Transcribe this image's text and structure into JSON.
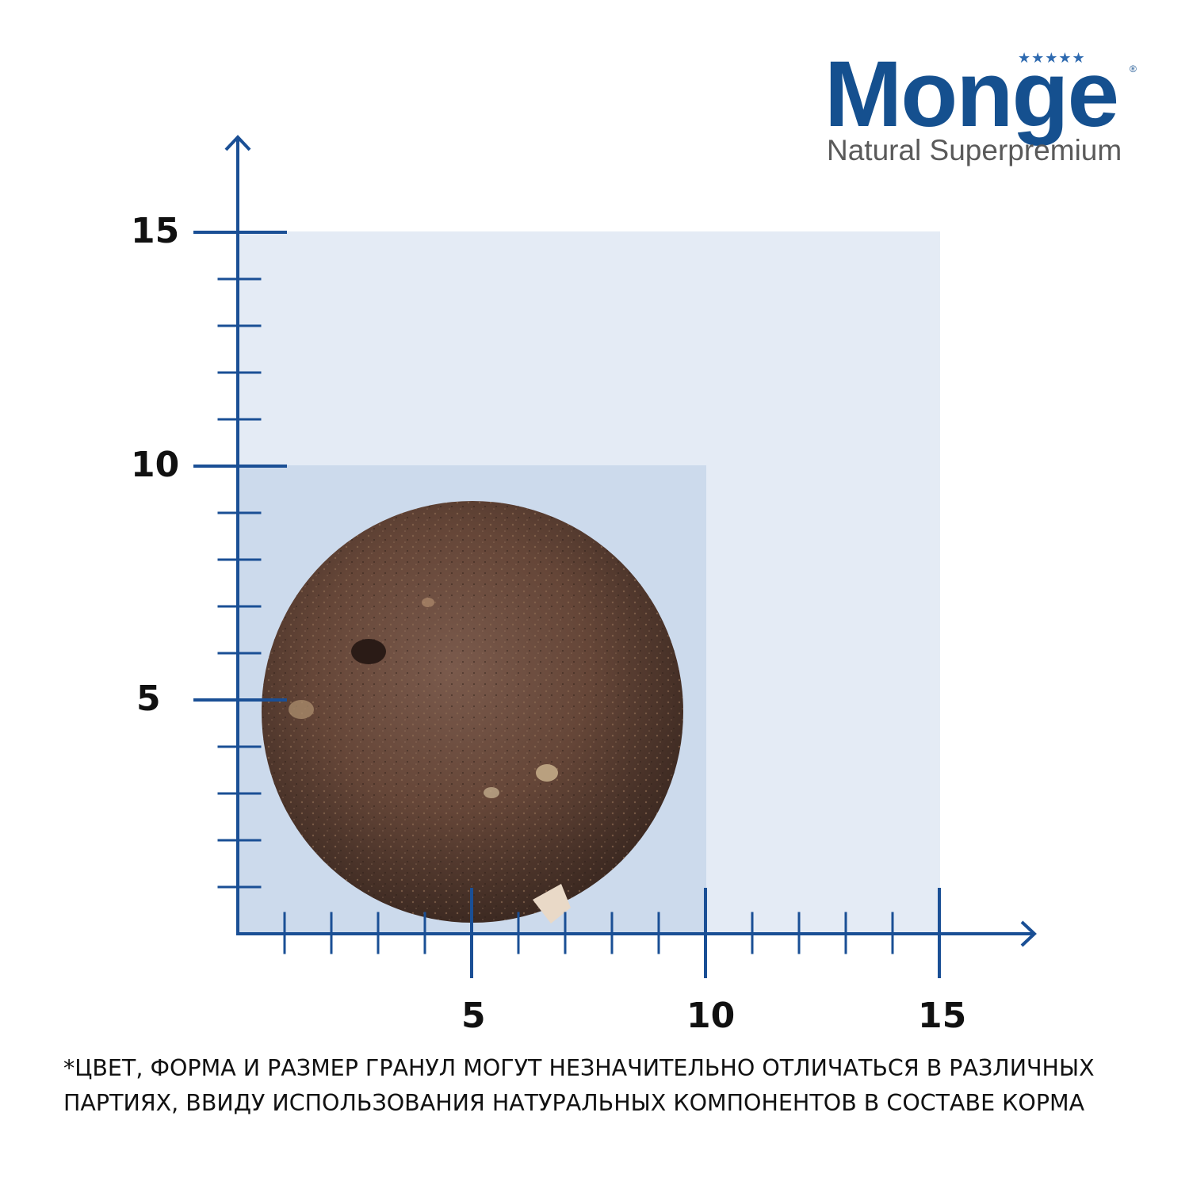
{
  "brand": {
    "name": "Monge",
    "stars": "★★★★★",
    "registered": "®",
    "tagline": "Natural Superpremium",
    "color": "#15508f"
  },
  "chart": {
    "y_ticks": [
      "15",
      "10",
      "5"
    ],
    "x_ticks": [
      "5",
      "10",
      "15"
    ],
    "axis_color": "#1a4f95",
    "outer_box_color": "#e4ebf5",
    "inner_box_color": "#ccdaec",
    "outer_box_size": 15,
    "inner_box_size": 10,
    "kibble_diameter": 9
  },
  "disclaimer": {
    "line1": "*ЦВЕТ, ФОРМА И РАЗМЕР ГРАНУЛ МОГУТ НЕЗНАЧИТЕЛЬНО ОТЛИЧАТЬСЯ  В РАЗЛИЧНЫХ",
    "line2": "ПАРТИЯХ, ВВИДУ ИСПОЛЬЗОВАНИЯ НАТУРАЛЬНЫХ КОМПОНЕНТОВ В СОСТАВЕ  КОРМА"
  }
}
